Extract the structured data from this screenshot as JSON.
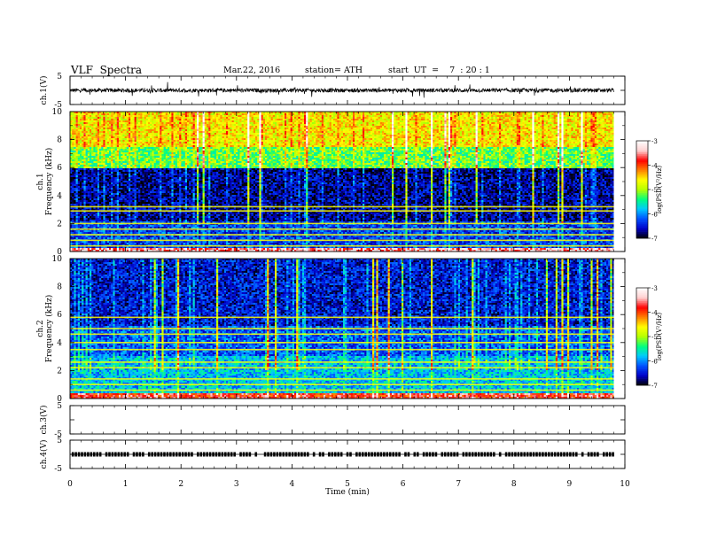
{
  "header": {
    "title": "VLF  Spectra",
    "date": "Mar.22, 2016",
    "station": "station= ATH",
    "start": "start  UT  =    7  : 20 : 1"
  },
  "colors": {
    "colormap": [
      "#000000",
      "#0000c8",
      "#0050ff",
      "#00c8ff",
      "#00ff80",
      "#b4ff00",
      "#ffff00",
      "#ff8000",
      "#ff0000",
      "#ffd0d0",
      "#ffffff"
    ]
  },
  "chart_data": [
    {
      "type": "line",
      "name": "ch1-voltage",
      "ylabel": "ch.1(V)",
      "ylim": [
        -5,
        5
      ],
      "yticks": [
        "5",
        "-5"
      ],
      "x_range": [
        0,
        9.8
      ],
      "mean": 0,
      "noise_amplitude": 0.7
    },
    {
      "type": "heatmap",
      "name": "ch1-spectrogram",
      "ylabel_channel": "ch.1",
      "ylabel": "Frequency  (kHz)",
      "ylim": [
        0,
        10
      ],
      "yticks": [
        "0",
        "2",
        "4",
        "6",
        "8",
        "10"
      ],
      "x_range": [
        0,
        9.8
      ],
      "bands": [
        {
          "f_from": 0,
          "f_to": 0.3,
          "logpsd": -3.5
        },
        {
          "f_from": 0.3,
          "f_to": 2.2,
          "logpsd": -6.3
        },
        {
          "f_from": 2.2,
          "f_to": 5.9,
          "logpsd": -6.7
        },
        {
          "f_from": 5.9,
          "f_to": 7.5,
          "logpsd": -5.2
        },
        {
          "f_from": 7.5,
          "f_to": 10,
          "logpsd": -4.6
        }
      ],
      "lines_khz": [
        0.4,
        0.8,
        1.2,
        1.6,
        2.0,
        2.9,
        3.2
      ],
      "colorbar": {
        "label": "log(PSD(V²/Hz)",
        "range": [
          -7,
          -3
        ],
        "ticks": [
          "-3",
          "-4",
          "-5",
          "-6",
          "-7"
        ]
      }
    },
    {
      "type": "heatmap",
      "name": "ch2-spectrogram",
      "ylabel_channel": "ch.2",
      "ylabel": "Frequency  (kHz)",
      "ylim": [
        0,
        10
      ],
      "yticks": [
        "0",
        "2",
        "4",
        "6",
        "8",
        "10"
      ],
      "x_range": [
        0,
        9.8
      ],
      "bands": [
        {
          "f_from": 0,
          "f_to": 0.4,
          "logpsd": -3.8
        },
        {
          "f_from": 0.4,
          "f_to": 3.0,
          "logpsd": -5.8
        },
        {
          "f_from": 3.0,
          "f_to": 5.2,
          "logpsd": -6.2
        },
        {
          "f_from": 5.2,
          "f_to": 10,
          "logpsd": -6.5
        }
      ],
      "lines_khz": [
        0.6,
        1.0,
        1.4,
        2.2,
        2.6,
        3.5,
        4.0,
        4.6,
        5.0,
        5.8
      ],
      "colorbar": {
        "label": "log(PSD(V²/Hz)",
        "range": [
          -7,
          -3
        ],
        "ticks": [
          "-3",
          "-4",
          "-5",
          "-6",
          "-7"
        ]
      }
    },
    {
      "type": "line",
      "name": "ch3-voltage",
      "ylabel": "ch.3(V)",
      "ylim": [
        -5,
        5
      ],
      "yticks": [
        "5",
        "-5"
      ],
      "x_range": [
        0,
        9.8
      ],
      "values": []
    },
    {
      "type": "line",
      "name": "ch4-voltage",
      "ylabel": "ch.4(V)",
      "ylim": [
        -5,
        5
      ],
      "yticks": [
        "5",
        "-5"
      ],
      "x_range": [
        0,
        9.8
      ],
      "level": 0,
      "note": "pulsed signal near 0 V"
    }
  ],
  "xaxis": {
    "label": "Time  (min)",
    "xlim": [
      0,
      10
    ],
    "ticks": [
      "0",
      "1",
      "2",
      "3",
      "4",
      "5",
      "6",
      "7",
      "8",
      "9",
      "10"
    ]
  }
}
